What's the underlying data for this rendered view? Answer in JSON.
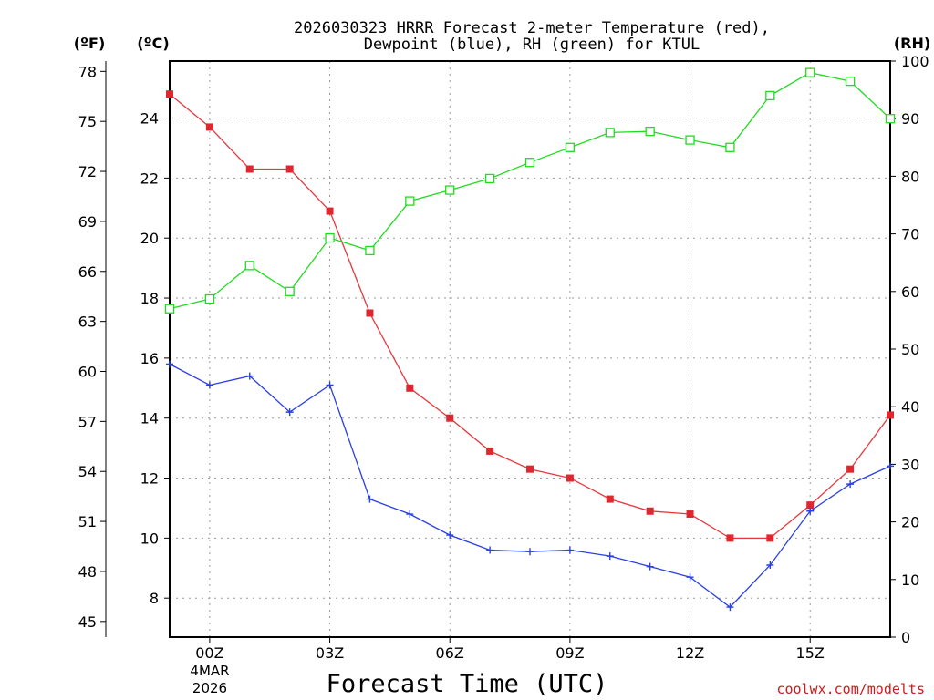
{
  "title": {
    "line1": "2026030323 HRRR Forecast 2-meter Temperature (red),",
    "line2": "Dewpoint (blue), RH (green) for KTUL"
  },
  "units": {
    "fahrenheit": "(ºF)",
    "celsius": "(ºC)",
    "rh": "(RH)"
  },
  "credit": "coolwx.com/modelts",
  "colors": {
    "temperature": "#e8383d",
    "temperature_marker": "#e0262f",
    "dewpoint": "#2a3fe6",
    "rh": "#1fdc1f",
    "credit": "#d11a1a"
  },
  "chart_data": {
    "type": "line",
    "title": "2026030323 HRRR Forecast 2-meter Temperature (red), Dewpoint (blue), RH (green) for KTUL",
    "xlabel": "Forecast Time (UTC)",
    "date_label": [
      "4MAR",
      "2026"
    ],
    "x_hours": [
      -1,
      0,
      1,
      2,
      3,
      4,
      5,
      6,
      7,
      8,
      9,
      10,
      11,
      12,
      13,
      14,
      15,
      16,
      17
    ],
    "xlim": [
      -1,
      17
    ],
    "x_ticks": [
      {
        "hour": 0,
        "label": "00Z"
      },
      {
        "hour": 3,
        "label": "03Z"
      },
      {
        "hour": 6,
        "label": "06Z"
      },
      {
        "hour": 9,
        "label": "09Z"
      },
      {
        "hour": 12,
        "label": "12Z"
      },
      {
        "hour": 15,
        "label": "15Z"
      }
    ],
    "celsius_axis": {
      "ylim": [
        6.7,
        25.9
      ],
      "ticks": [
        "8",
        "10",
        "12",
        "14",
        "16",
        "18",
        "20",
        "22",
        "24"
      ]
    },
    "fahrenheit_axis": {
      "ylim": [
        44.06,
        78.62
      ],
      "ticks": [
        "45",
        "48",
        "51",
        "54",
        "57",
        "60",
        "63",
        "66",
        "69",
        "72",
        "75",
        "78"
      ]
    },
    "rh_axis": {
      "ylim": [
        0,
        100
      ],
      "ticks": [
        "0",
        "10",
        "20",
        "30",
        "40",
        "50",
        "60",
        "70",
        "80",
        "90",
        "100"
      ]
    },
    "series": [
      {
        "name": "Temperature",
        "axis": "celsius",
        "marker": "filled-square",
        "color_key": "temperature",
        "values": [
          24.8,
          23.7,
          22.3,
          22.3,
          20.9,
          17.5,
          15.0,
          14.0,
          12.9,
          12.3,
          12.0,
          11.3,
          10.9,
          10.8,
          10.0,
          10.0,
          11.1,
          12.3,
          14.1
        ]
      },
      {
        "name": "Dewpoint",
        "axis": "celsius",
        "marker": "plus",
        "color_key": "dewpoint",
        "values": [
          15.8,
          15.1,
          15.4,
          14.2,
          15.1,
          11.3,
          10.8,
          10.1,
          9.6,
          9.55,
          9.6,
          9.4,
          9.05,
          8.7,
          7.7,
          9.1,
          10.9,
          11.8,
          12.4
        ]
      },
      {
        "name": "RH",
        "axis": "rh",
        "marker": "open-square",
        "color_key": "rh",
        "values": [
          57,
          58.7,
          64.5,
          60,
          69.3,
          67.1,
          75.7,
          77.6,
          79.6,
          82.4,
          85,
          87.6,
          87.8,
          86.3,
          85,
          94,
          98,
          96.5,
          90
        ]
      }
    ]
  }
}
